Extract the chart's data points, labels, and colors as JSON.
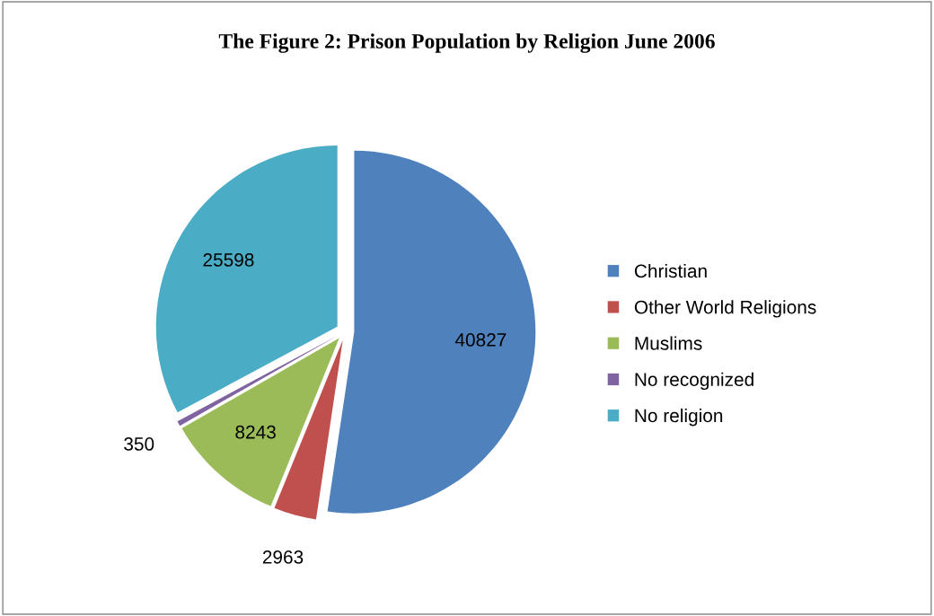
{
  "chart_data": {
    "type": "pie",
    "title": "The Figure 2: Prison Population by Religion June 2006",
    "categories": [
      "Christian",
      "Other World Religions",
      "Muslims",
      "No recognized",
      "No religion"
    ],
    "values": [
      40827,
      2963,
      8243,
      350,
      25598
    ],
    "colors": [
      "#4f81bd",
      "#c0504d",
      "#9bbb59",
      "#8064a2",
      "#4bacc6"
    ],
    "data_labels": true,
    "legend": "right"
  }
}
